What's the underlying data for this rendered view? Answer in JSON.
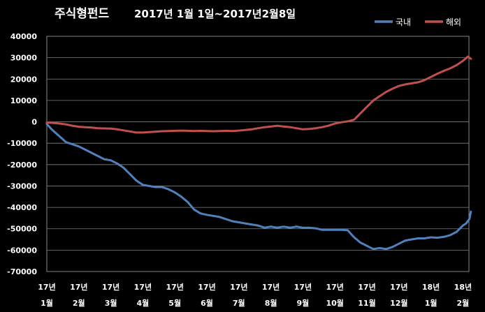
{
  "chart_data": {
    "type": "line",
    "title": "주식형펀드",
    "subtitle": "2017년 1월 1일~2017년2월8일",
    "xlabel": "",
    "ylabel": "",
    "ylim": [
      -70000,
      40000
    ],
    "yticks": [
      40000,
      30000,
      20000,
      10000,
      0,
      -10000,
      -20000,
      -30000,
      -40000,
      -50000,
      -60000,
      -70000
    ],
    "ytick_labels": [
      "40000",
      "30000",
      "20000",
      "10000",
      "0",
      "-10000",
      "-20000",
      "-30000",
      "-40000",
      "-50000",
      "-60000",
      "-70000"
    ],
    "x_ticks": [
      {
        "year": "17년",
        "month": "1월",
        "pos": 0.0
      },
      {
        "year": "17년",
        "month": "2월",
        "pos": 1.0
      },
      {
        "year": "17년",
        "month": "3월",
        "pos": 2.0
      },
      {
        "year": "17년",
        "month": "4월",
        "pos": 3.0
      },
      {
        "year": "17년",
        "month": "5월",
        "pos": 4.0
      },
      {
        "year": "17년",
        "month": "6월",
        "pos": 5.0
      },
      {
        "year": "17년",
        "month": "7월",
        "pos": 6.0
      },
      {
        "year": "17년",
        "month": "8월",
        "pos": 7.0
      },
      {
        "year": "17년",
        "month": "9월",
        "pos": 8.0
      },
      {
        "year": "17년",
        "month": "10월",
        "pos": 9.0
      },
      {
        "year": "17년",
        "month": "11월",
        "pos": 10.0
      },
      {
        "year": "17년",
        "month": "12월",
        "pos": 11.0
      },
      {
        "year": "18년",
        "month": "1월",
        "pos": 12.0
      },
      {
        "year": "18년",
        "month": "2월",
        "pos": 13.0
      }
    ],
    "xlim": [
      0,
      13.25
    ],
    "grid": true,
    "legend_position": "top-right",
    "series": [
      {
        "name": "국내",
        "color": "#4f81bd",
        "points": [
          [
            0.0,
            -1000
          ],
          [
            0.15,
            -3500
          ],
          [
            0.3,
            -5500
          ],
          [
            0.45,
            -7500
          ],
          [
            0.6,
            -9500
          ],
          [
            0.8,
            -10500
          ],
          [
            1.0,
            -11500
          ],
          [
            1.2,
            -13000
          ],
          [
            1.4,
            -14500
          ],
          [
            1.6,
            -16000
          ],
          [
            1.8,
            -17500
          ],
          [
            2.0,
            -18000
          ],
          [
            2.2,
            -19500
          ],
          [
            2.4,
            -21500
          ],
          [
            2.6,
            -24500
          ],
          [
            2.8,
            -27500
          ],
          [
            3.0,
            -29500
          ],
          [
            3.2,
            -30000
          ],
          [
            3.4,
            -30500
          ],
          [
            3.6,
            -30500
          ],
          [
            3.8,
            -31500
          ],
          [
            4.0,
            -33000
          ],
          [
            4.2,
            -35000
          ],
          [
            4.4,
            -37500
          ],
          [
            4.6,
            -41000
          ],
          [
            4.8,
            -42800
          ],
          [
            5.0,
            -43500
          ],
          [
            5.2,
            -44000
          ],
          [
            5.4,
            -44500
          ],
          [
            5.6,
            -45500
          ],
          [
            5.8,
            -46500
          ],
          [
            6.0,
            -47000
          ],
          [
            6.2,
            -47500
          ],
          [
            6.4,
            -48000
          ],
          [
            6.6,
            -48500
          ],
          [
            6.8,
            -49500
          ],
          [
            7.0,
            -49000
          ],
          [
            7.2,
            -49500
          ],
          [
            7.4,
            -49000
          ],
          [
            7.6,
            -49500
          ],
          [
            7.8,
            -49000
          ],
          [
            8.0,
            -49500
          ],
          [
            8.2,
            -49500
          ],
          [
            8.4,
            -49800
          ],
          [
            8.6,
            -50500
          ],
          [
            8.8,
            -50500
          ],
          [
            9.0,
            -50500
          ],
          [
            9.2,
            -50500
          ],
          [
            9.4,
            -50700
          ],
          [
            9.6,
            -54000
          ],
          [
            9.8,
            -56500
          ],
          [
            10.0,
            -58000
          ],
          [
            10.2,
            -59500
          ],
          [
            10.4,
            -59000
          ],
          [
            10.6,
            -59500
          ],
          [
            10.8,
            -58500
          ],
          [
            11.0,
            -57000
          ],
          [
            11.2,
            -55500
          ],
          [
            11.4,
            -55000
          ],
          [
            11.6,
            -54500
          ],
          [
            11.8,
            -54500
          ],
          [
            12.0,
            -54000
          ],
          [
            12.2,
            -54200
          ],
          [
            12.4,
            -53800
          ],
          [
            12.6,
            -53000
          ],
          [
            12.8,
            -51500
          ],
          [
            13.0,
            -48500
          ],
          [
            13.1,
            -47500
          ],
          [
            13.2,
            -45500
          ],
          [
            13.25,
            -42000
          ]
        ]
      },
      {
        "name": "해외",
        "color": "#c0504d",
        "points": [
          [
            0.0,
            -300
          ],
          [
            0.2,
            -500
          ],
          [
            0.4,
            -800
          ],
          [
            0.6,
            -1200
          ],
          [
            0.8,
            -1800
          ],
          [
            1.0,
            -2300
          ],
          [
            1.2,
            -2500
          ],
          [
            1.4,
            -2700
          ],
          [
            1.6,
            -3000
          ],
          [
            1.8,
            -3100
          ],
          [
            2.0,
            -3200
          ],
          [
            2.2,
            -3500
          ],
          [
            2.4,
            -4000
          ],
          [
            2.6,
            -4500
          ],
          [
            2.8,
            -5000
          ],
          [
            3.0,
            -5000
          ],
          [
            3.2,
            -4800
          ],
          [
            3.4,
            -4600
          ],
          [
            3.6,
            -4400
          ],
          [
            3.8,
            -4300
          ],
          [
            4.0,
            -4200
          ],
          [
            4.2,
            -4100
          ],
          [
            4.4,
            -4200
          ],
          [
            4.6,
            -4300
          ],
          [
            4.8,
            -4200
          ],
          [
            5.0,
            -4300
          ],
          [
            5.2,
            -4400
          ],
          [
            5.4,
            -4300
          ],
          [
            5.6,
            -4200
          ],
          [
            5.8,
            -4300
          ],
          [
            6.0,
            -4100
          ],
          [
            6.2,
            -3800
          ],
          [
            6.4,
            -3500
          ],
          [
            6.6,
            -3000
          ],
          [
            6.8,
            -2500
          ],
          [
            7.0,
            -2200
          ],
          [
            7.2,
            -1800
          ],
          [
            7.4,
            -2200
          ],
          [
            7.6,
            -2500
          ],
          [
            7.8,
            -3000
          ],
          [
            8.0,
            -3500
          ],
          [
            8.2,
            -3300
          ],
          [
            8.4,
            -3000
          ],
          [
            8.6,
            -2500
          ],
          [
            8.8,
            -1800
          ],
          [
            9.0,
            -800
          ],
          [
            9.2,
            -200
          ],
          [
            9.4,
            200
          ],
          [
            9.6,
            1000
          ],
          [
            9.8,
            4000
          ],
          [
            10.0,
            7000
          ],
          [
            10.2,
            10000
          ],
          [
            10.4,
            12000
          ],
          [
            10.6,
            14000
          ],
          [
            10.8,
            15500
          ],
          [
            11.0,
            16800
          ],
          [
            11.2,
            17500
          ],
          [
            11.4,
            18000
          ],
          [
            11.6,
            18500
          ],
          [
            11.8,
            19500
          ],
          [
            12.0,
            21000
          ],
          [
            12.2,
            22500
          ],
          [
            12.4,
            23800
          ],
          [
            12.6,
            25000
          ],
          [
            12.8,
            26500
          ],
          [
            13.0,
            28500
          ],
          [
            13.15,
            30500
          ],
          [
            13.25,
            29500
          ]
        ]
      }
    ]
  }
}
